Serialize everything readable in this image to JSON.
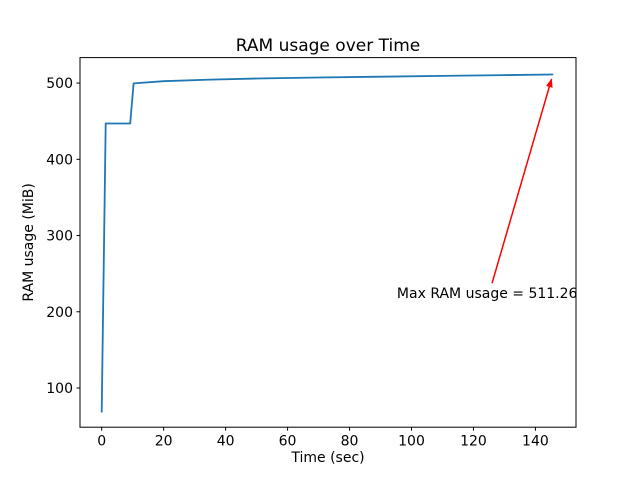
{
  "figure": {
    "background": "#ffffff",
    "frame_color": "#000000",
    "text_color": "#000000"
  },
  "chart_data": {
    "type": "line",
    "title": "RAM usage over Time",
    "xlabel": "Time (sec)",
    "ylabel": "RAM usage (MiB)",
    "xlim": [
      -7.0,
      153.1
    ],
    "ylim": [
      48.6,
      533.4
    ],
    "x_ticks": [
      0,
      20,
      40,
      60,
      80,
      100,
      120,
      140
    ],
    "y_ticks": [
      100,
      200,
      300,
      400,
      500
    ],
    "grid": false,
    "legend_position": "none",
    "line_color": "#1f77b4",
    "series": [
      {
        "name": "RAM usage",
        "points": [
          [
            0,
            68.9
          ],
          [
            1.3,
            446.9
          ],
          [
            9.2,
            446.9
          ],
          [
            10.3,
            499.5
          ],
          [
            20,
            502.5
          ],
          [
            35,
            504.5
          ],
          [
            50,
            506.0
          ],
          [
            70,
            507.3
          ],
          [
            90,
            508.4
          ],
          [
            110,
            509.4
          ],
          [
            130,
            510.4
          ],
          [
            145.5,
            511.26
          ]
        ]
      }
    ],
    "max_value": 511.26,
    "annotation": {
      "text": "Max RAM usage = 511.26",
      "color": "#ff0000",
      "text_anchor_data": [
        95.3,
        218
      ],
      "arrow_start_data": [
        126.0,
        237.5
      ],
      "arrow_end_data": [
        145.2,
        505.0
      ]
    }
  }
}
